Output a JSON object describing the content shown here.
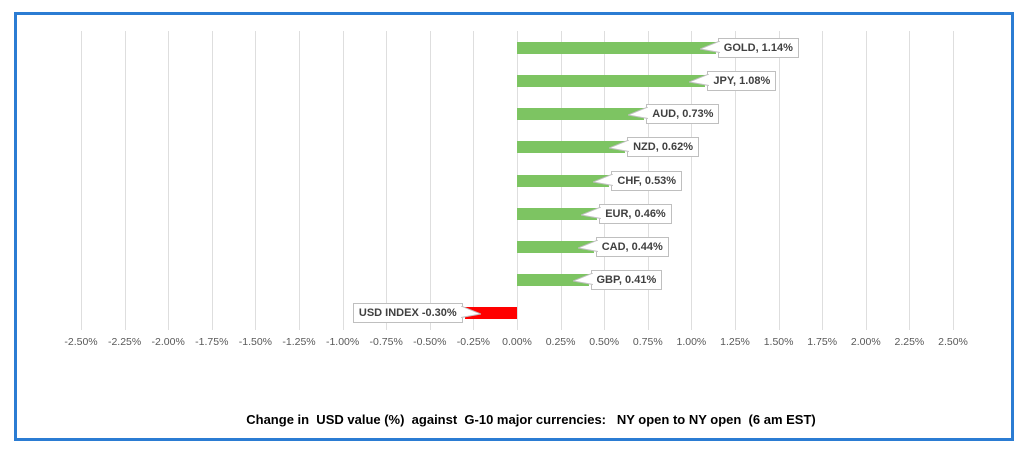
{
  "frame": {
    "border_color": "#2b7cd3",
    "background_color": "#ffffff"
  },
  "chart_data": {
    "type": "bar",
    "orientation": "horizontal",
    "title": "Change in  USD value (%)  against  G-10 major currencies:   NY open to NY open  (6 am EST)",
    "categories": [
      "GOLD",
      "JPY",
      "AUD",
      "NZD",
      "CHF",
      "EUR",
      "CAD",
      "GBP",
      "USD INDEX"
    ],
    "values": [
      1.14,
      1.08,
      0.73,
      0.62,
      0.53,
      0.46,
      0.44,
      0.41,
      -0.3
    ],
    "data_labels": [
      "GOLD, 1.14%",
      "JPY, 1.08%",
      "AUD, 0.73%",
      "NZD, 0.62%",
      "CHF, 0.53%",
      "EUR, 0.46%",
      "CAD, 0.44%",
      "GBP, 0.41%",
      "USD INDEX -0.30%"
    ],
    "xlim": [
      -2.5,
      2.5
    ],
    "tick_step": 0.25,
    "tick_labels": [
      "-2.50%",
      "-2.25%",
      "-2.00%",
      "-1.75%",
      "-1.50%",
      "-1.25%",
      "-1.00%",
      "-0.75%",
      "-0.50%",
      "-0.25%",
      "0.00%",
      "0.25%",
      "0.50%",
      "0.75%",
      "1.00%",
      "1.25%",
      "1.50%",
      "1.75%",
      "2.00%",
      "2.25%",
      "2.50%"
    ],
    "grid": true,
    "legend": "none",
    "positive_color": "#7dc462",
    "negative_color": "#ff0000",
    "gridline_color": "#dedede",
    "axis_text_color": "#595959",
    "label_text_color": "#404040",
    "label_border_color": "#bfbfbf"
  }
}
